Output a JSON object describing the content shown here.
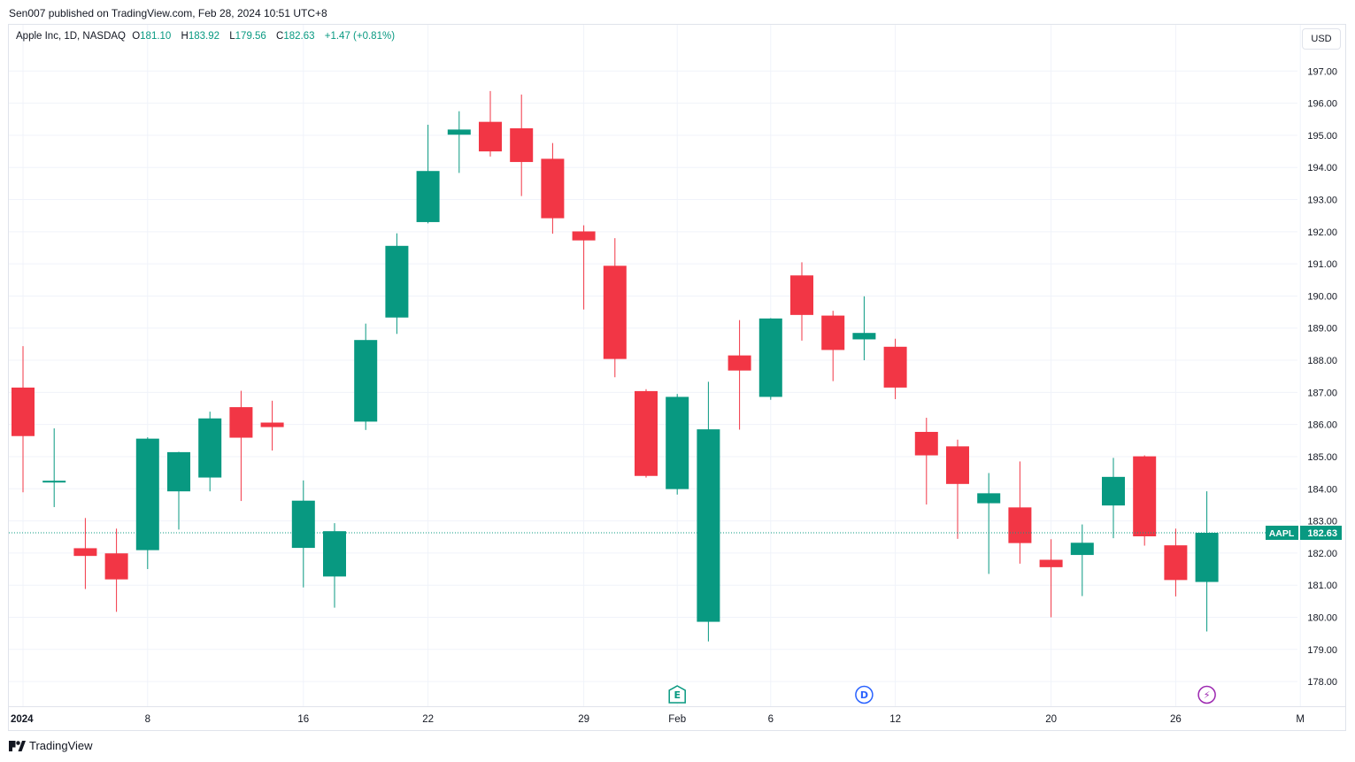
{
  "published": "Sen007 published on TradingView.com, Feb 28, 2024 10:51 UTC+8",
  "legend": {
    "title": "Apple Inc, 1D, NASDAQ",
    "o_label": "O",
    "o": "181.10",
    "h_label": "H",
    "h": "183.92",
    "l_label": "L",
    "l": "179.56",
    "c_label": "C",
    "c": "182.63",
    "change": "+1.47 (+0.81%)"
  },
  "currency": "USD",
  "footer": {
    "brand": "TradingView"
  },
  "colors": {
    "up": "#089981",
    "down": "#f23645",
    "grid": "#f0f3fa",
    "text": "#131722"
  },
  "chart_data": {
    "type": "candlestick",
    "symbol": "AAPL",
    "last_price": 182.63,
    "ylim": [
      177.7,
      198.0
    ],
    "y_ticks": [
      178,
      179,
      180,
      181,
      182,
      183,
      184,
      185,
      186,
      187,
      188,
      189,
      190,
      191,
      192,
      193,
      194,
      195,
      196,
      197
    ],
    "x_ticks": [
      {
        "index": 0,
        "label": "2024"
      },
      {
        "index": 4,
        "label": "8"
      },
      {
        "index": 9,
        "label": "16"
      },
      {
        "index": 13,
        "label": "22"
      },
      {
        "index": 18,
        "label": "29"
      },
      {
        "index": 21,
        "label": "Feb"
      },
      {
        "index": 24,
        "label": "6"
      },
      {
        "index": 28,
        "label": "12"
      },
      {
        "index": 33,
        "label": "20"
      },
      {
        "index": 37,
        "label": "26"
      },
      {
        "index": 41,
        "label": "M"
      }
    ],
    "candles": [
      {
        "date": "2024-01-02",
        "o": 187.15,
        "h": 188.44,
        "l": 183.89,
        "c": 185.64
      },
      {
        "date": "2024-01-03",
        "o": 184.22,
        "h": 185.88,
        "l": 183.43,
        "c": 184.25
      },
      {
        "date": "2024-01-04",
        "o": 182.15,
        "h": 183.09,
        "l": 180.88,
        "c": 181.91
      },
      {
        "date": "2024-01-05",
        "o": 181.99,
        "h": 182.76,
        "l": 180.17,
        "c": 181.18
      },
      {
        "date": "2024-01-08",
        "o": 182.09,
        "h": 185.6,
        "l": 181.5,
        "c": 185.56
      },
      {
        "date": "2024-01-09",
        "o": 183.92,
        "h": 185.15,
        "l": 182.73,
        "c": 185.14
      },
      {
        "date": "2024-01-10",
        "o": 184.35,
        "h": 186.4,
        "l": 183.92,
        "c": 186.19
      },
      {
        "date": "2024-01-11",
        "o": 186.54,
        "h": 187.05,
        "l": 183.62,
        "c": 185.59
      },
      {
        "date": "2024-01-12",
        "o": 186.06,
        "h": 186.74,
        "l": 185.19,
        "c": 185.92
      },
      {
        "date": "2024-01-16",
        "o": 182.16,
        "h": 184.26,
        "l": 180.93,
        "c": 183.63
      },
      {
        "date": "2024-01-17",
        "o": 181.27,
        "h": 182.93,
        "l": 180.3,
        "c": 182.68
      },
      {
        "date": "2024-01-18",
        "o": 186.09,
        "h": 189.14,
        "l": 185.83,
        "c": 188.63
      },
      {
        "date": "2024-01-19",
        "o": 189.33,
        "h": 191.95,
        "l": 188.82,
        "c": 191.56
      },
      {
        "date": "2024-01-22",
        "o": 192.3,
        "h": 195.33,
        "l": 192.26,
        "c": 193.89
      },
      {
        "date": "2024-01-23",
        "o": 195.02,
        "h": 195.75,
        "l": 193.83,
        "c": 195.18
      },
      {
        "date": "2024-01-24",
        "o": 195.42,
        "h": 196.38,
        "l": 194.34,
        "c": 194.5
      },
      {
        "date": "2024-01-25",
        "o": 195.22,
        "h": 196.27,
        "l": 193.11,
        "c": 194.17
      },
      {
        "date": "2024-01-26",
        "o": 194.27,
        "h": 194.76,
        "l": 191.94,
        "c": 192.42
      },
      {
        "date": "2024-01-29",
        "o": 192.01,
        "h": 192.2,
        "l": 189.58,
        "c": 191.73
      },
      {
        "date": "2024-01-30",
        "o": 190.94,
        "h": 191.8,
        "l": 187.47,
        "c": 188.04
      },
      {
        "date": "2024-01-31",
        "o": 187.04,
        "h": 187.1,
        "l": 184.35,
        "c": 184.4
      },
      {
        "date": "2024-02-01",
        "o": 183.99,
        "h": 186.95,
        "l": 183.82,
        "c": 186.86
      },
      {
        "date": "2024-02-02",
        "o": 179.86,
        "h": 187.33,
        "l": 179.25,
        "c": 185.85
      },
      {
        "date": "2024-02-05",
        "o": 188.15,
        "h": 189.25,
        "l": 185.84,
        "c": 187.68
      },
      {
        "date": "2024-02-06",
        "o": 186.86,
        "h": 189.31,
        "l": 186.77,
        "c": 189.3
      },
      {
        "date": "2024-02-07",
        "o": 190.64,
        "h": 191.05,
        "l": 188.61,
        "c": 189.41
      },
      {
        "date": "2024-02-08",
        "o": 189.39,
        "h": 189.54,
        "l": 187.35,
        "c": 188.32
      },
      {
        "date": "2024-02-09",
        "o": 188.65,
        "h": 189.99,
        "l": 188.0,
        "c": 188.85
      },
      {
        "date": "2024-02-12",
        "o": 188.42,
        "h": 188.67,
        "l": 186.79,
        "c": 187.15
      },
      {
        "date": "2024-02-13",
        "o": 185.77,
        "h": 186.21,
        "l": 183.51,
        "c": 185.04
      },
      {
        "date": "2024-02-14",
        "o": 185.32,
        "h": 185.53,
        "l": 182.44,
        "c": 184.15
      },
      {
        "date": "2024-02-15",
        "o": 183.55,
        "h": 184.49,
        "l": 181.35,
        "c": 183.86
      },
      {
        "date": "2024-02-16",
        "o": 183.42,
        "h": 184.85,
        "l": 181.67,
        "c": 182.31
      },
      {
        "date": "2024-02-20",
        "o": 181.79,
        "h": 182.43,
        "l": 180.0,
        "c": 181.56
      },
      {
        "date": "2024-02-21",
        "o": 181.94,
        "h": 182.89,
        "l": 180.66,
        "c": 182.32
      },
      {
        "date": "2024-02-22",
        "o": 183.48,
        "h": 184.96,
        "l": 182.46,
        "c": 184.37
      },
      {
        "date": "2024-02-23",
        "o": 185.01,
        "h": 185.04,
        "l": 182.23,
        "c": 182.52
      },
      {
        "date": "2024-02-26",
        "o": 182.24,
        "h": 182.76,
        "l": 180.65,
        "c": 181.16
      },
      {
        "date": "2024-02-27",
        "o": 181.1,
        "h": 183.92,
        "l": 179.56,
        "c": 182.63
      }
    ],
    "markers": [
      {
        "index": 21,
        "label": "E",
        "color": "#089981",
        "icon": "earnings-icon"
      },
      {
        "index": 27,
        "label": "D",
        "color": "#2962ff",
        "icon": "dividend-icon"
      },
      {
        "index": 38,
        "label": "⚡",
        "color": "#9c27b0",
        "icon": "lightning-icon"
      }
    ]
  }
}
